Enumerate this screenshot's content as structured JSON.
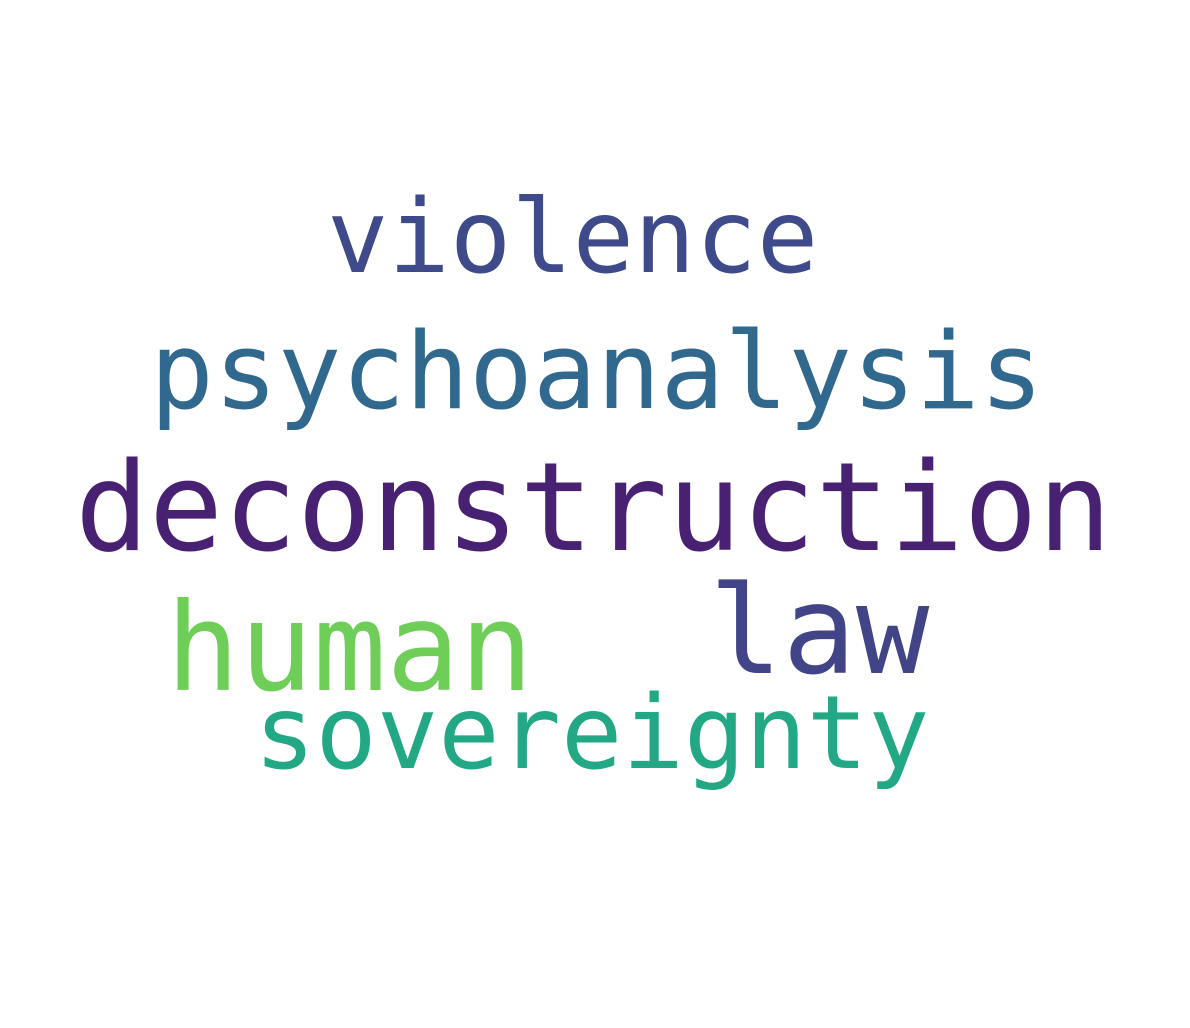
{
  "words": [
    {
      "text": "violence",
      "color": "#3e4a89"
    },
    {
      "text": "psychoanalysis",
      "color": "#31688e"
    },
    {
      "text": "deconstruction",
      "color": "#482173"
    },
    {
      "text": "human",
      "color": "#6ece58"
    },
    {
      "text": "law",
      "color": "#414487"
    },
    {
      "text": "sovereignty",
      "color": "#22a884"
    }
  ]
}
